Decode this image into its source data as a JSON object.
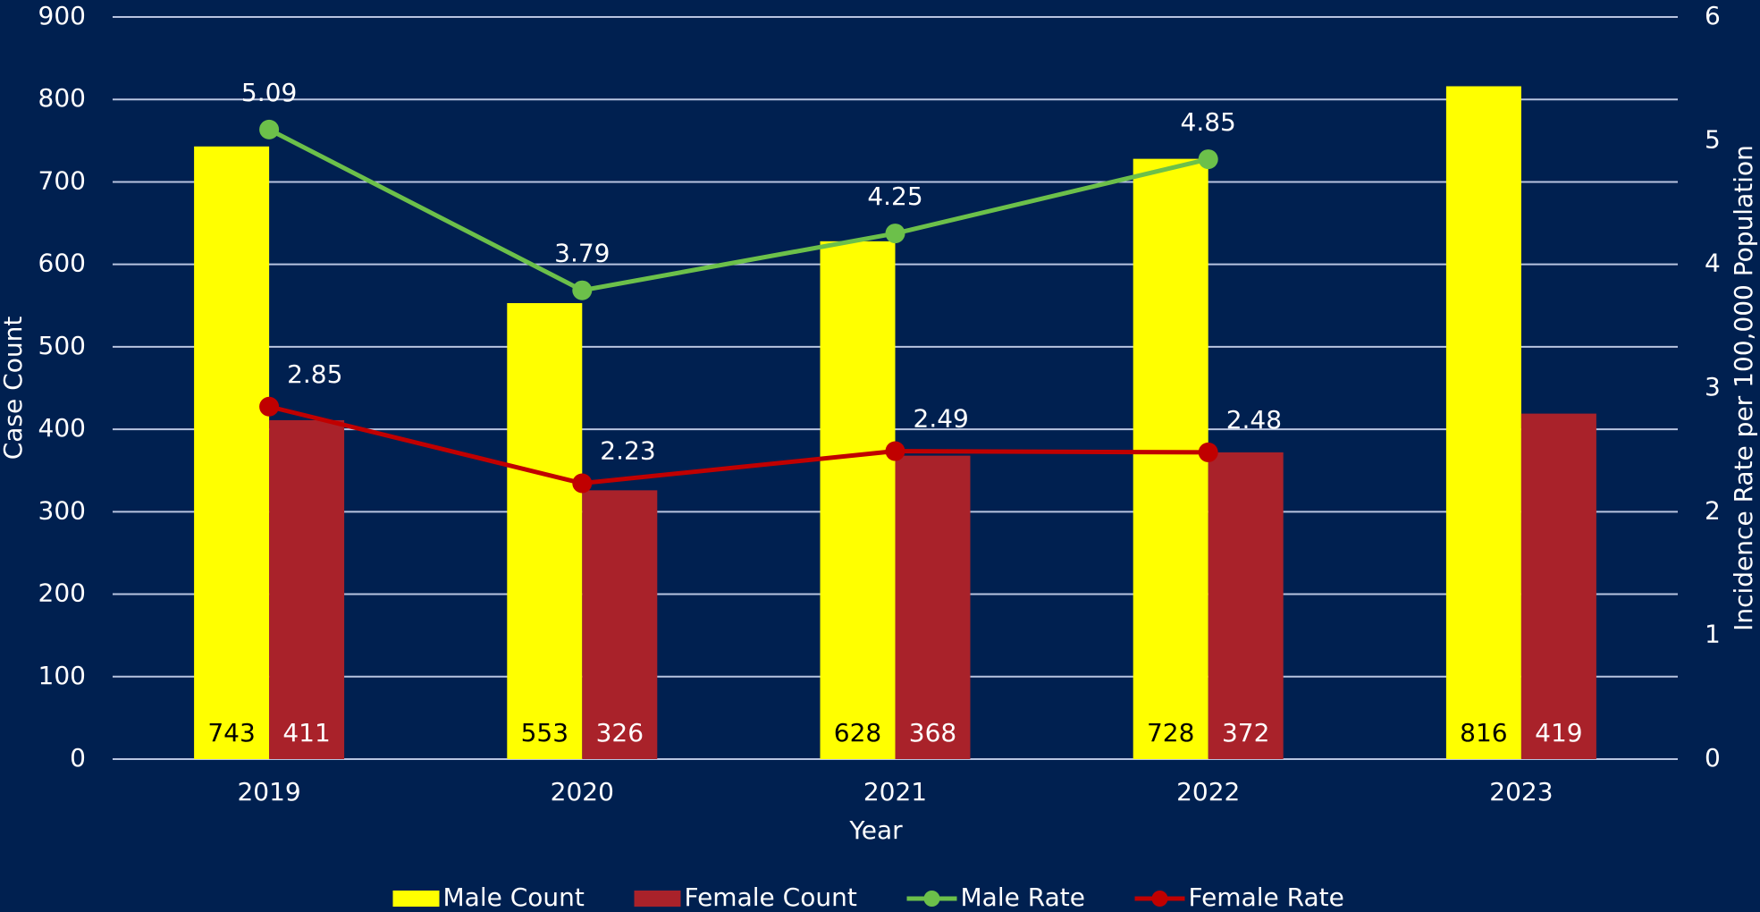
{
  "chart_data": {
    "type": "bar",
    "x_label": "Year",
    "y_label": "Case Count",
    "y2_label": "Incidence Rate per 100,000 Population",
    "categories": [
      "2019",
      "2020",
      "2021",
      "2022",
      "2023"
    ],
    "series": [
      {
        "name": "Male Count",
        "type": "bar",
        "color": "#ffff00",
        "label_color": "#000000",
        "values": [
          743,
          553,
          628,
          728,
          816
        ]
      },
      {
        "name": "Female Count",
        "type": "bar",
        "color": "#a9222a",
        "label_color": "#ffffff",
        "values": [
          411,
          326,
          368,
          372,
          419
        ]
      },
      {
        "name": "Male Rate",
        "type": "line",
        "axis": "y2",
        "color": "#6cc04a",
        "values": [
          5.09,
          3.79,
          4.25,
          4.85,
          null
        ]
      },
      {
        "name": "Female Rate",
        "type": "line",
        "axis": "y2",
        "color": "#c00000",
        "values": [
          2.85,
          2.23,
          2.49,
          2.48,
          null
        ]
      }
    ],
    "ylim": [
      0,
      900
    ],
    "yticks": [
      0,
      100,
      200,
      300,
      400,
      500,
      600,
      700,
      800,
      900
    ],
    "y2lim": [
      0,
      6
    ],
    "y2ticks": [
      0,
      1,
      2,
      3,
      4,
      5,
      6
    ],
    "grid": true,
    "legend": "bottom"
  }
}
